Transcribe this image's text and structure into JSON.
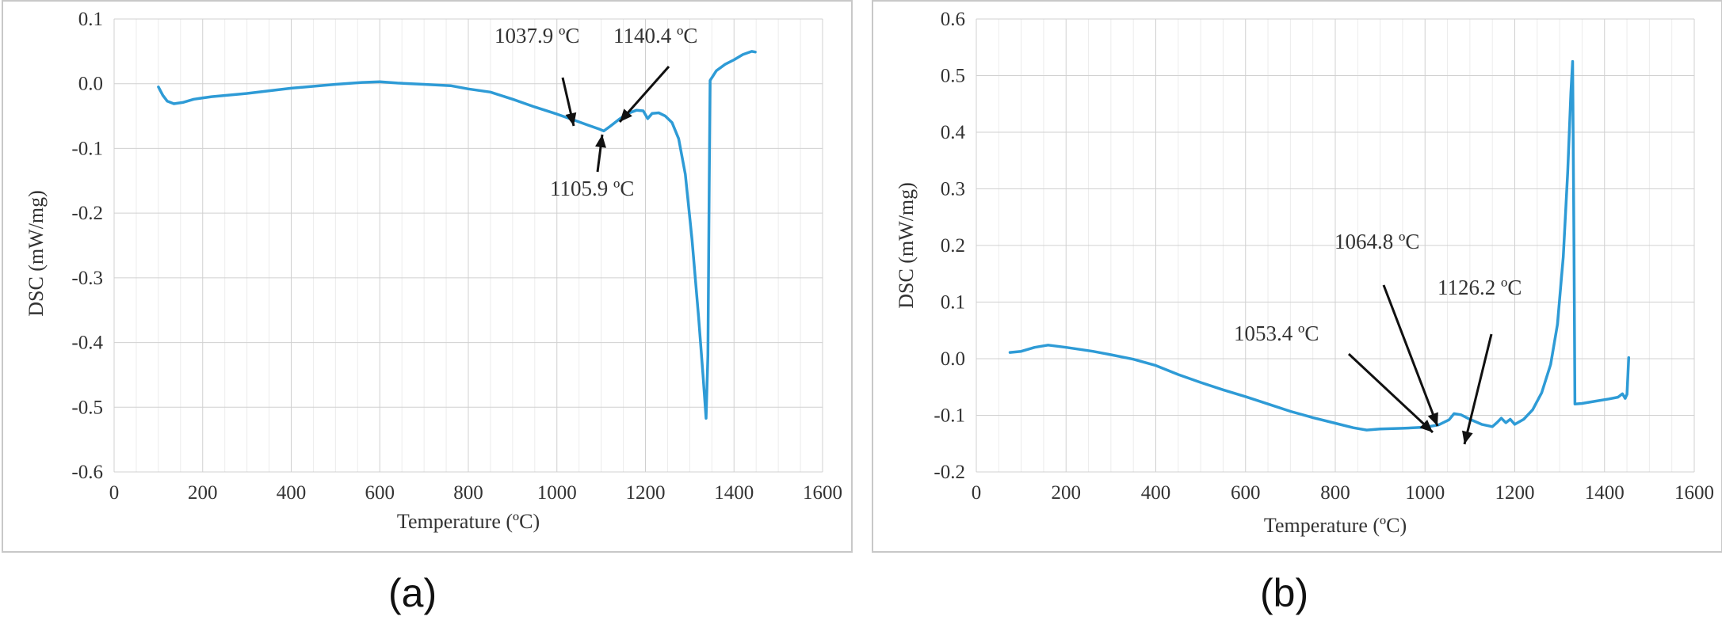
{
  "chart_data": [
    {
      "type": "line",
      "panel_label": "(a)",
      "xlabel": "Temperature (ºC)",
      "ylabel": "DSC (mW/mg)",
      "xlim": [
        0,
        1600
      ],
      "ylim": [
        -0.6,
        0.1
      ],
      "xticks": [
        0,
        200,
        400,
        600,
        800,
        1000,
        1200,
        1400,
        1600
      ],
      "yticks": [
        -0.6,
        -0.5,
        -0.4,
        -0.3,
        -0.2,
        -0.1,
        0.0,
        0.1
      ],
      "ytick_labels": [
        "-0.6",
        "-0.5",
        "-0.4",
        "-0.3",
        "-0.2",
        "-0.1",
        "0.0",
        "0.1"
      ],
      "grid": true,
      "series": [
        {
          "name": "DSC",
          "color": "#2e9bd6",
          "points": [
            [
              100,
              -0.005
            ],
            [
              110,
              -0.018
            ],
            [
              120,
              -0.027
            ],
            [
              135,
              -0.031
            ],
            [
              155,
              -0.029
            ],
            [
              180,
              -0.024
            ],
            [
              220,
              -0.02
            ],
            [
              300,
              -0.015
            ],
            [
              400,
              -0.007
            ],
            [
              500,
              -0.001
            ],
            [
              560,
              0.002
            ],
            [
              600,
              0.003
            ],
            [
              640,
              0.001
            ],
            [
              700,
              -0.001
            ],
            [
              760,
              -0.003
            ],
            [
              800,
              -0.008
            ],
            [
              850,
              -0.013
            ],
            [
              900,
              -0.024
            ],
            [
              950,
              -0.036
            ],
            [
              1000,
              -0.047
            ],
            [
              1037.9,
              -0.056
            ],
            [
              1070,
              -0.064
            ],
            [
              1095,
              -0.07
            ],
            [
              1105.9,
              -0.073
            ],
            [
              1120,
              -0.066
            ],
            [
              1140.4,
              -0.055
            ],
            [
              1160,
              -0.046
            ],
            [
              1180,
              -0.041
            ],
            [
              1195,
              -0.042
            ],
            [
              1205,
              -0.054
            ],
            [
              1215,
              -0.046
            ],
            [
              1230,
              -0.045
            ],
            [
              1245,
              -0.05
            ],
            [
              1260,
              -0.06
            ],
            [
              1275,
              -0.085
            ],
            [
              1290,
              -0.14
            ],
            [
              1305,
              -0.24
            ],
            [
              1320,
              -0.36
            ],
            [
              1330,
              -0.45
            ],
            [
              1337,
              -0.517
            ],
            [
              1341,
              -0.42
            ],
            [
              1344,
              -0.15
            ],
            [
              1346,
              0.005
            ],
            [
              1360,
              0.02
            ],
            [
              1380,
              0.03
            ],
            [
              1400,
              0.037
            ],
            [
              1420,
              0.045
            ],
            [
              1440,
              0.05
            ],
            [
              1448,
              0.049
            ]
          ]
        }
      ],
      "annotations": [
        {
          "text": "1037.9 ºC",
          "x": 1037.9,
          "y": -0.056
        },
        {
          "text": "1140.4 ºC",
          "x": 1140.4,
          "y": -0.055
        },
        {
          "text": "1105.9 ºC",
          "x": 1105.9,
          "y": -0.073
        }
      ]
    },
    {
      "type": "line",
      "panel_label": "(b)",
      "xlabel": "Temperature (ºC)",
      "ylabel": "DSC (mW/mg)",
      "xlim": [
        0,
        1600
      ],
      "ylim": [
        -0.2,
        0.6
      ],
      "xticks": [
        0,
        200,
        400,
        600,
        800,
        1000,
        1200,
        1400,
        1600
      ],
      "yticks": [
        -0.2,
        -0.1,
        0.0,
        0.1,
        0.2,
        0.3,
        0.4,
        0.5,
        0.6
      ],
      "ytick_labels": [
        "-0.2",
        "-0.1",
        "0.0",
        "0.1",
        "0.2",
        "0.3",
        "0.4",
        "0.5",
        "0.6"
      ],
      "grid": true,
      "series": [
        {
          "name": "DSC",
          "color": "#2e9bd6",
          "points": [
            [
              75,
              0.011
            ],
            [
              100,
              0.013
            ],
            [
              130,
              0.02
            ],
            [
              160,
              0.024
            ],
            [
              200,
              0.02
            ],
            [
              260,
              0.013
            ],
            [
              300,
              0.007
            ],
            [
              350,
              -0.001
            ],
            [
              400,
              -0.012
            ],
            [
              450,
              -0.028
            ],
            [
              500,
              -0.042
            ],
            [
              550,
              -0.055
            ],
            [
              600,
              -0.067
            ],
            [
              650,
              -0.08
            ],
            [
              700,
              -0.093
            ],
            [
              750,
              -0.104
            ],
            [
              800,
              -0.114
            ],
            [
              840,
              -0.122
            ],
            [
              870,
              -0.126
            ],
            [
              900,
              -0.124
            ],
            [
              950,
              -0.123
            ],
            [
              1000,
              -0.121
            ],
            [
              1030,
              -0.117
            ],
            [
              1053.4,
              -0.108
            ],
            [
              1064.8,
              -0.097
            ],
            [
              1080,
              -0.099
            ],
            [
              1100,
              -0.107
            ],
            [
              1126.2,
              -0.116
            ],
            [
              1150,
              -0.12
            ],
            [
              1160,
              -0.113
            ],
            [
              1170,
              -0.105
            ],
            [
              1180,
              -0.113
            ],
            [
              1190,
              -0.107
            ],
            [
              1200,
              -0.116
            ],
            [
              1220,
              -0.107
            ],
            [
              1240,
              -0.09
            ],
            [
              1260,
              -0.06
            ],
            [
              1280,
              -0.01
            ],
            [
              1295,
              0.06
            ],
            [
              1308,
              0.18
            ],
            [
              1318,
              0.33
            ],
            [
              1325,
              0.47
            ],
            [
              1329,
              0.525
            ],
            [
              1332,
              0.2
            ],
            [
              1334,
              -0.08
            ],
            [
              1350,
              -0.079
            ],
            [
              1380,
              -0.075
            ],
            [
              1410,
              -0.071
            ],
            [
              1430,
              -0.068
            ],
            [
              1440,
              -0.062
            ],
            [
              1446,
              -0.07
            ],
            [
              1450,
              -0.063
            ],
            [
              1454,
              0.002
            ]
          ]
        }
      ],
      "annotations": [
        {
          "text": "1064.8 ºC",
          "x": 1064.8,
          "y": -0.097
        },
        {
          "text": "1126.2 ºC",
          "x": 1126.2,
          "y": -0.116
        },
        {
          "text": "1053.4 ºC",
          "x": 1053.4,
          "y": -0.108
        }
      ]
    }
  ]
}
